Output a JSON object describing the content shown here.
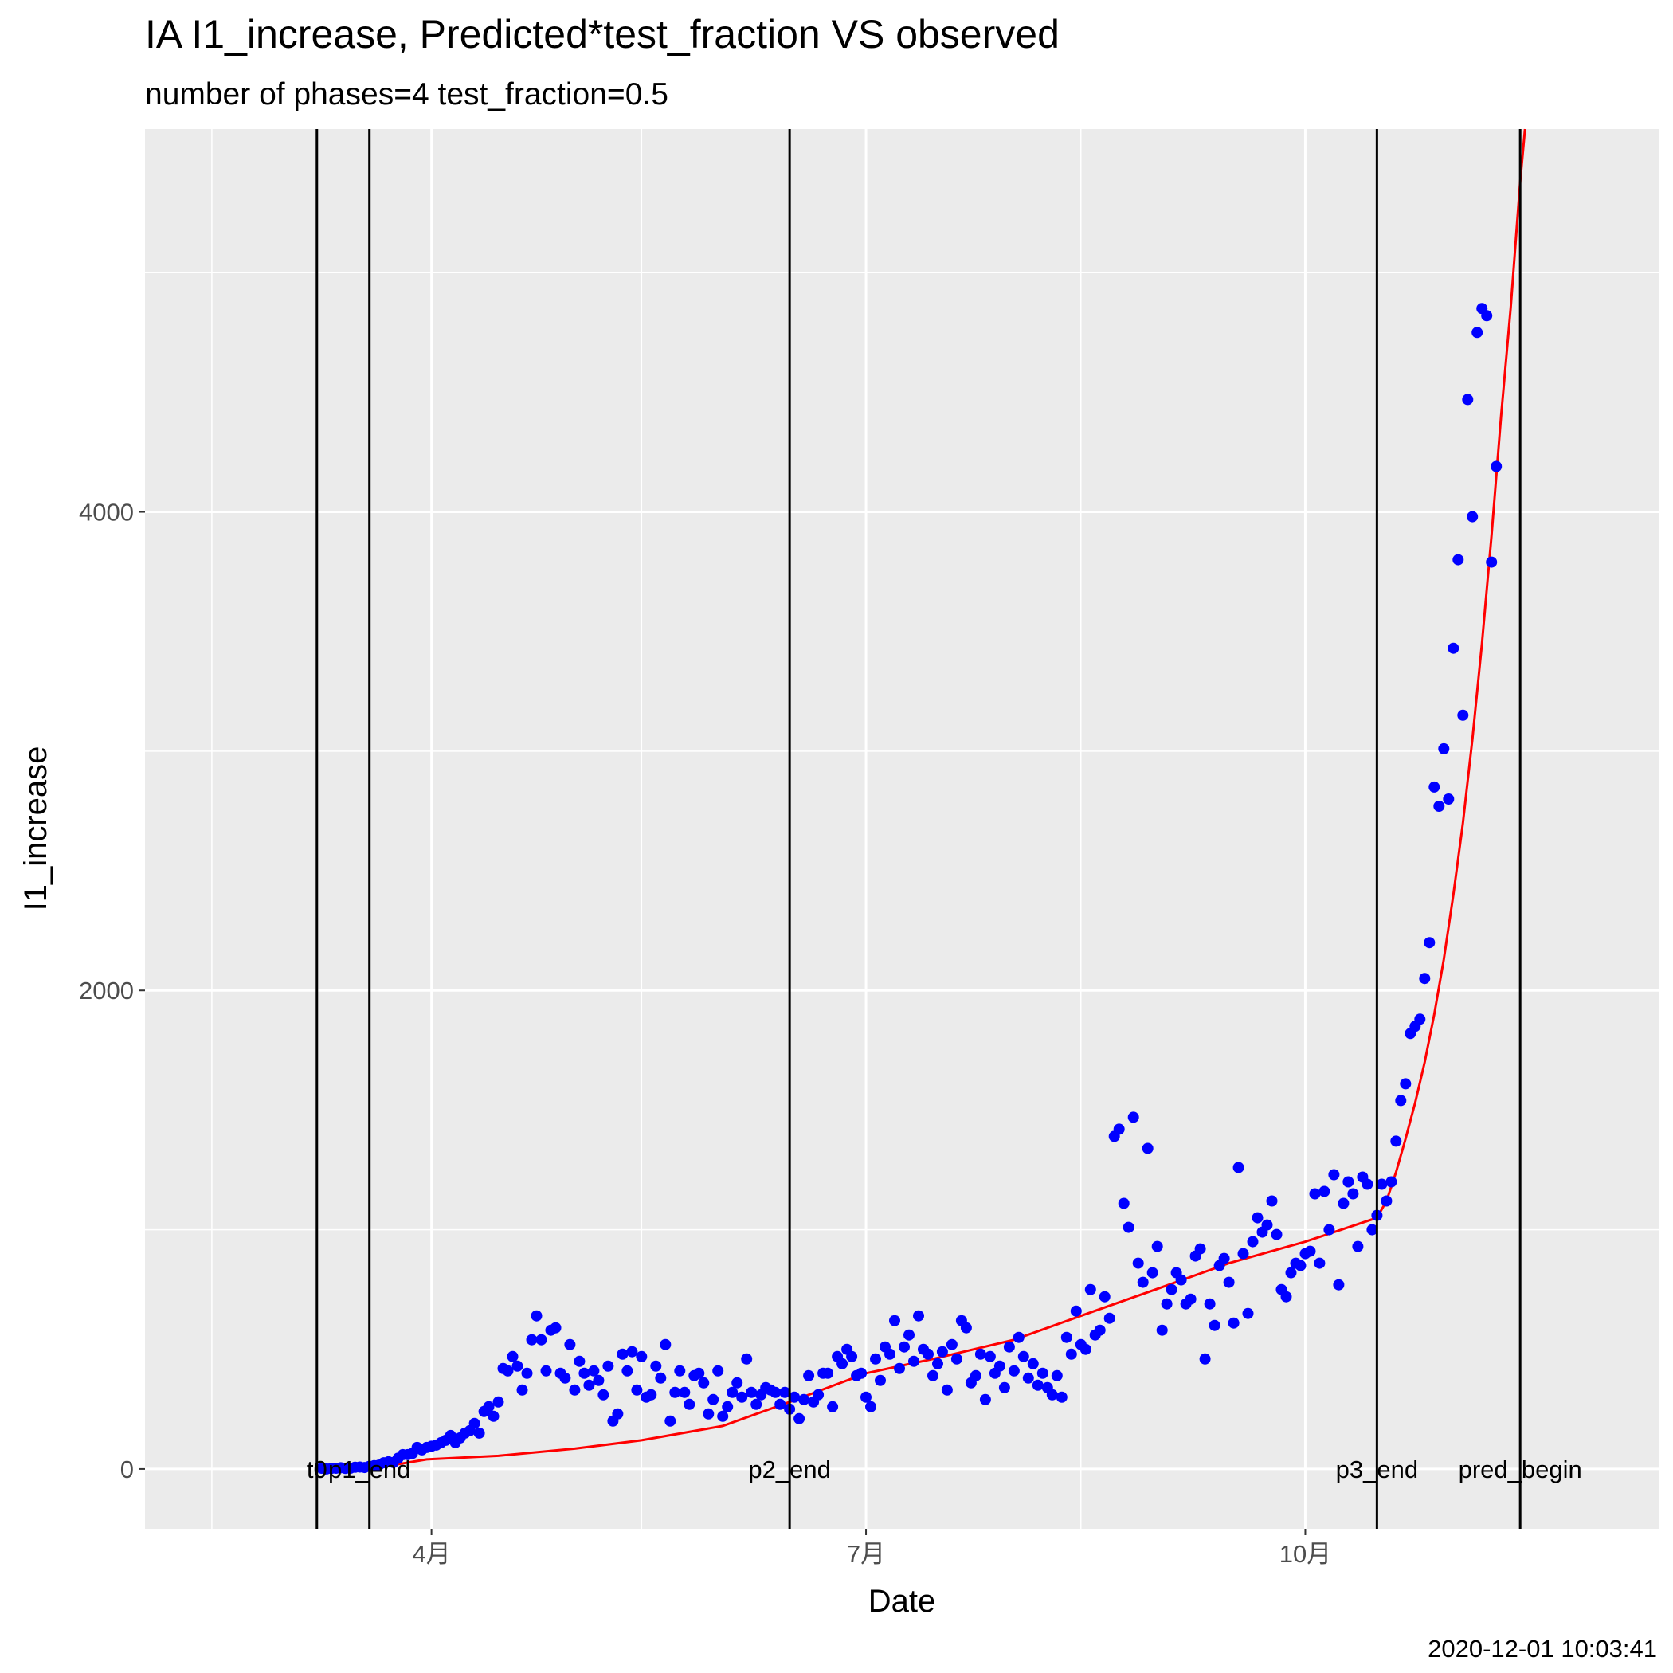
{
  "chart_data": {
    "type": "scatter",
    "title": "IA I1_increase, Predicted*test_fraction VS observed",
    "subtitle": "number of phases=4   test_fraction=0.5",
    "xlabel": "Date",
    "ylabel": "I1_increase",
    "caption": "2020-12-01 10:03:41",
    "xlim": [
      "2020-02-01",
      "2020-12-14"
    ],
    "ylim": [
      -250,
      5600
    ],
    "x_ticks": [
      {
        "date": "2020-04-01",
        "label": "4月"
      },
      {
        "date": "2020-07-01",
        "label": "7月"
      },
      {
        "date": "2020-10-01",
        "label": "10月"
      }
    ],
    "x_minor_ticks": [
      "2020-02-15",
      "2020-05-15",
      "2020-08-15",
      "2020-11-15"
    ],
    "y_ticks": [
      0,
      2000,
      4000
    ],
    "y_minor_ticks": [
      1000,
      3000,
      5000
    ],
    "grid": true,
    "panel_color": "#ebebeb",
    "vertical_lines": [
      {
        "date": "2020-03-08",
        "label": "t0"
      },
      {
        "date": "2020-03-19",
        "label": "p1_end"
      },
      {
        "date": "2020-06-15",
        "label": "p2_end"
      },
      {
        "date": "2020-10-16",
        "label": "p3_end"
      },
      {
        "date": "2020-11-15",
        "label": "pred_begin"
      }
    ],
    "series": [
      {
        "kind": "points",
        "color": "#0000ff",
        "start_date": "2020-03-09",
        "values": [
          3,
          0,
          2,
          3,
          5,
          2,
          3,
          7,
          8,
          6,
          11,
          14,
          16,
          26,
          30,
          27,
          45,
          60,
          60,
          65,
          90,
          80,
          90,
          95,
          100,
          110,
          120,
          140,
          110,
          130,
          150,
          160,
          190,
          150,
          240,
          260,
          220,
          280,
          420,
          410,
          470,
          430,
          330,
          400,
          540,
          640,
          540,
          410,
          580,
          590,
          400,
          380,
          520,
          330,
          450,
          400,
          350,
          410,
          370,
          310,
          430,
          200,
          230,
          480,
          410,
          490,
          330,
          470,
          300,
          310,
          430,
          380,
          520,
          200,
          320,
          410,
          320,
          270,
          390,
          400,
          360,
          230,
          290,
          410,
          220,
          260,
          320,
          360,
          300,
          460,
          320,
          270,
          310,
          340,
          330,
          320,
          270,
          320,
          250,
          300,
          210,
          290,
          390,
          280,
          310,
          400,
          400,
          260,
          470,
          440,
          500,
          470,
          390,
          400,
          300,
          260,
          460,
          370,
          510,
          480,
          620,
          420,
          510,
          560,
          450,
          640,
          500,
          480,
          390,
          440,
          490,
          330,
          520,
          460,
          620,
          590,
          360,
          390,
          480,
          290,
          470,
          400,
          430,
          340,
          510,
          410,
          550,
          470,
          380,
          440,
          350,
          400,
          340,
          310,
          390,
          300,
          550,
          480,
          660,
          520,
          500,
          750,
          560,
          580,
          720,
          630,
          1390,
          1420,
          1110,
          1010,
          1470,
          860,
          780,
          1340,
          820,
          930,
          580,
          690,
          750,
          820,
          790,
          690,
          710,
          890,
          920,
          460,
          690,
          600,
          850,
          880,
          780,
          610,
          1260,
          900,
          650,
          950,
          1050,
          990,
          1020,
          1120,
          980,
          750,
          720,
          820,
          860,
          850,
          900,
          910,
          1150,
          860,
          1160,
          1000,
          1230,
          770,
          1110,
          1200,
          1150,
          930,
          1220,
          1190,
          1000,
          1060,
          1190,
          1120,
          1200,
          1370,
          1540,
          1610,
          1820,
          1850,
          1880,
          2050,
          2200,
          2850,
          2770,
          3010,
          2800,
          3430,
          3800,
          3150,
          4470,
          3980,
          4750,
          4850,
          4820,
          3790,
          4190
        ]
      },
      {
        "kind": "line",
        "color": "#ff0000",
        "points": [
          [
            "2020-03-19",
            0
          ],
          [
            "2020-03-31",
            40
          ],
          [
            "2020-04-15",
            55
          ],
          [
            "2020-05-01",
            85
          ],
          [
            "2020-05-15",
            120
          ],
          [
            "2020-06-01",
            180
          ],
          [
            "2020-06-15",
            280
          ],
          [
            "2020-07-01",
            400
          ],
          [
            "2020-07-15",
            460
          ],
          [
            "2020-08-01",
            540
          ],
          [
            "2020-08-15",
            640
          ],
          [
            "2020-09-01",
            760
          ],
          [
            "2020-09-15",
            860
          ],
          [
            "2020-10-01",
            950
          ],
          [
            "2020-10-16",
            1050
          ],
          [
            "2020-10-18",
            1120
          ],
          [
            "2020-10-20",
            1240
          ],
          [
            "2020-10-22",
            1380
          ],
          [
            "2020-10-24",
            1530
          ],
          [
            "2020-10-26",
            1700
          ],
          [
            "2020-10-28",
            1900
          ],
          [
            "2020-10-30",
            2130
          ],
          [
            "2020-11-01",
            2400
          ],
          [
            "2020-11-03",
            2700
          ],
          [
            "2020-11-05",
            3050
          ],
          [
            "2020-11-07",
            3450
          ],
          [
            "2020-11-09",
            3900
          ],
          [
            "2020-11-11",
            4400
          ],
          [
            "2020-11-13",
            4850
          ],
          [
            "2020-11-15",
            5380
          ],
          [
            "2020-11-16",
            5600
          ]
        ]
      }
    ]
  }
}
